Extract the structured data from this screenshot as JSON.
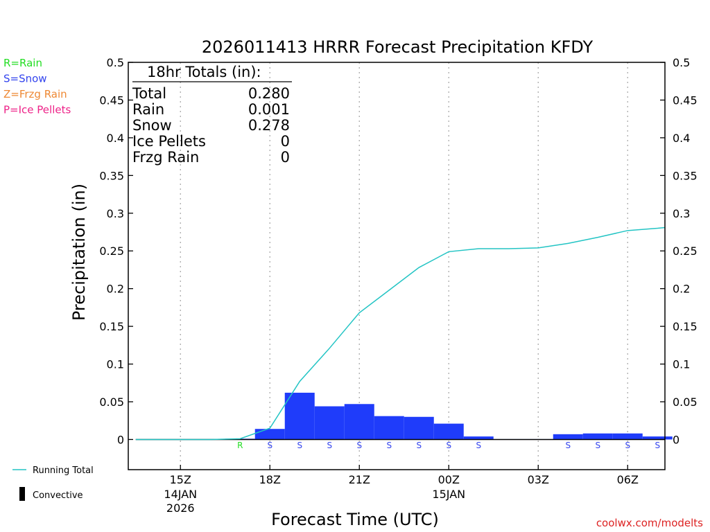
{
  "chart_data": {
    "type": "bar",
    "title": "2026011413 HRRR Forecast Precipitation KFDY",
    "xlabel": "Forecast Time (UTC)",
    "ylabel": "Precipitation (in)",
    "ylim": [
      -0.04,
      0.5
    ],
    "yticks": [
      0,
      0.05,
      0.1,
      0.15,
      0.2,
      0.25,
      0.3,
      0.35,
      0.4,
      0.45,
      0.5
    ],
    "ytick_labels": [
      "0",
      "0.05",
      "0.1",
      "0.15",
      "0.2",
      "0.25",
      "0.3",
      "0.35",
      "0.4",
      "0.45",
      "0.5"
    ],
    "xlim": [
      13.25,
      31.25
    ],
    "xticks": [
      {
        "hour": 15,
        "label": "15Z",
        "date": "14JAN",
        "year": "2026"
      },
      {
        "hour": 18,
        "label": "18Z",
        "date": "",
        "year": ""
      },
      {
        "hour": 21,
        "label": "21Z",
        "date": "",
        "year": ""
      },
      {
        "hour": 24,
        "label": "00Z",
        "date": "15JAN",
        "year": ""
      },
      {
        "hour": 27,
        "label": "03Z",
        "date": "",
        "year": ""
      },
      {
        "hour": 30,
        "label": "06Z",
        "date": "",
        "year": ""
      }
    ],
    "hourly": {
      "hours": [
        14,
        15,
        16,
        17,
        18,
        19,
        20,
        21,
        22,
        23,
        24,
        25,
        26,
        27,
        28,
        29,
        30,
        31
      ],
      "values": [
        0,
        0,
        0,
        0.001,
        0.014,
        0.062,
        0.044,
        0.047,
        0.031,
        0.03,
        0.021,
        0.004,
        0.0005,
        0.0005,
        0.007,
        0.008,
        0.008,
        0.004
      ]
    },
    "running_total": {
      "name": "Running Total",
      "hours": [
        13.5,
        14,
        15,
        16,
        17,
        18,
        19,
        20,
        21,
        22,
        23,
        24,
        25,
        26,
        27,
        28,
        29,
        30,
        31,
        31.25
      ],
      "values": [
        0,
        0,
        0,
        0,
        0.001,
        0.015,
        0.077,
        0.121,
        0.168,
        0.198,
        0.228,
        0.249,
        0.253,
        0.253,
        0.254,
        0.26,
        0.268,
        0.277,
        0.28,
        0.281
      ]
    },
    "precip_types": {
      "hours": [
        17,
        18,
        19,
        20,
        21,
        22,
        23,
        24,
        25,
        28,
        29,
        30,
        31
      ],
      "codes": [
        "R",
        "S",
        "S",
        "S",
        "S",
        "S",
        "S",
        "S",
        "S",
        "S",
        "S",
        "S",
        "S"
      ]
    },
    "totals_box": {
      "header": "18hr Totals (in):",
      "rows": [
        {
          "label": "Total",
          "value": "0.280"
        },
        {
          "label": "Rain",
          "value": "0.001"
        },
        {
          "label": "Snow",
          "value": "0.278"
        },
        {
          "label": "Ice Pellets",
          "value": "0"
        },
        {
          "label": "Frzg Rain",
          "value": "0"
        }
      ]
    }
  },
  "legend": {
    "types": [
      {
        "text": "R=Rain",
        "color": "#22dd22"
      },
      {
        "text": "S=Snow",
        "color": "#3344ee"
      },
      {
        "text": "Z=Frzg Rain",
        "color": "#ee8833"
      },
      {
        "text": "P=Ice Pellets",
        "color": "#ee2288"
      }
    ],
    "running_total": "Running Total",
    "convective": "Convective"
  },
  "colors": {
    "bar": "#1f3cfa",
    "running_total": "#22c4c4",
    "rain": "#22dd22",
    "snow": "#3344ee",
    "credit": "#dd2222",
    "grid": "#aaaaaa"
  },
  "credit": "coolwx.com/modelts"
}
